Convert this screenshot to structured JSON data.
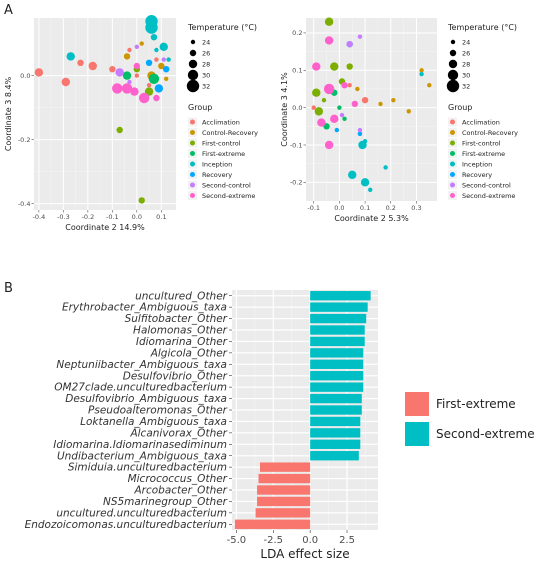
{
  "panels": {
    "a": "A",
    "b": "B"
  },
  "chart_data": [
    {
      "type": "scatter",
      "xlabel": "Coordinate 2 14.9%",
      "ylabel": "Coordinate 3 8.4%",
      "xlim": [
        -0.42,
        0.16
      ],
      "ylim": [
        -0.42,
        0.18
      ],
      "xticks": [
        -0.4,
        -0.3,
        -0.2,
        -0.1,
        0.0,
        0.1
      ],
      "xtick_labels": [
        "-0.4",
        "-0.3",
        "-0.2",
        "-0.1",
        "0.0",
        "0.1"
      ],
      "yticks": [
        -0.4,
        -0.2,
        0.0
      ],
      "ytick_labels": [
        "-0.4",
        "-0.2",
        "0.0"
      ],
      "grid": true,
      "points": [
        {
          "x": -0.4,
          "y": 0.01,
          "group": "Acclimation",
          "temp": 28
        },
        {
          "x": -0.29,
          "y": -0.02,
          "group": "Acclimation",
          "temp": 28
        },
        {
          "x": -0.23,
          "y": 0.04,
          "group": "Acclimation",
          "temp": 26
        },
        {
          "x": -0.18,
          "y": 0.03,
          "group": "Acclimation",
          "temp": 28
        },
        {
          "x": -0.1,
          "y": 0.02,
          "group": "Acclimation",
          "temp": 26
        },
        {
          "x": -0.03,
          "y": 0.08,
          "group": "Acclimation",
          "temp": 24
        },
        {
          "x": 0.0,
          "y": 0.0,
          "group": "Acclimation",
          "temp": 24
        },
        {
          "x": 0.05,
          "y": -0.03,
          "group": "Acclimation",
          "temp": 24
        },
        {
          "x": 0.08,
          "y": 0.05,
          "group": "Acclimation",
          "temp": 24
        },
        {
          "x": -0.04,
          "y": 0.06,
          "group": "Control-Recovery",
          "temp": 26
        },
        {
          "x": 0.02,
          "y": 0.1,
          "group": "Control-Recovery",
          "temp": 24
        },
        {
          "x": 0.06,
          "y": 0.0,
          "group": "Control-Recovery",
          "temp": 28
        },
        {
          "x": 0.1,
          "y": 0.03,
          "group": "Control-Recovery",
          "temp": 26
        },
        {
          "x": 0.12,
          "y": -0.01,
          "group": "Control-Recovery",
          "temp": 24
        },
        {
          "x": -0.07,
          "y": -0.17,
          "group": "First-control",
          "temp": 26
        },
        {
          "x": 0.02,
          "y": -0.39,
          "group": "First-control",
          "temp": 26
        },
        {
          "x": 0.0,
          "y": 0.02,
          "group": "First-control",
          "temp": 26
        },
        {
          "x": 0.05,
          "y": -0.05,
          "group": "First-control",
          "temp": 28
        },
        {
          "x": -0.04,
          "y": 0.0,
          "group": "First-extreme",
          "temp": 28
        },
        {
          "x": 0.07,
          "y": -0.01,
          "group": "First-extreme",
          "temp": 30
        },
        {
          "x": -0.27,
          "y": 0.06,
          "group": "Inception",
          "temp": 28
        },
        {
          "x": 0.06,
          "y": 0.17,
          "group": "Inception",
          "temp": 32
        },
        {
          "x": 0.06,
          "y": 0.15,
          "group": "Inception",
          "temp": 32
        },
        {
          "x": 0.07,
          "y": 0.12,
          "group": "Inception",
          "temp": 26
        },
        {
          "x": 0.08,
          "y": 0.08,
          "group": "Inception",
          "temp": 24
        },
        {
          "x": 0.11,
          "y": 0.09,
          "group": "Inception",
          "temp": 28
        },
        {
          "x": 0.13,
          "y": 0.05,
          "group": "Inception",
          "temp": 24
        },
        {
          "x": 0.05,
          "y": 0.04,
          "group": "Recovery",
          "temp": 26
        },
        {
          "x": 0.09,
          "y": -0.04,
          "group": "Recovery",
          "temp": 28
        },
        {
          "x": 0.12,
          "y": 0.02,
          "group": "Recovery",
          "temp": 26
        },
        {
          "x": 0.0,
          "y": 0.09,
          "group": "Second-control",
          "temp": 24
        },
        {
          "x": -0.07,
          "y": 0.01,
          "group": "Second-control",
          "temp": 28
        },
        {
          "x": -0.03,
          "y": -0.02,
          "group": "Second-control",
          "temp": 24
        },
        {
          "x": 0.11,
          "y": 0.05,
          "group": "Second-control",
          "temp": 24
        },
        {
          "x": -0.08,
          "y": -0.04,
          "group": "Second-extreme",
          "temp": 30
        },
        {
          "x": -0.04,
          "y": -0.04,
          "group": "Second-extreme",
          "temp": 30
        },
        {
          "x": -0.01,
          "y": -0.05,
          "group": "Second-extreme",
          "temp": 28
        },
        {
          "x": 0.03,
          "y": -0.07,
          "group": "Second-extreme",
          "temp": 30
        },
        {
          "x": 0.08,
          "y": -0.07,
          "group": "Second-extreme",
          "temp": 26
        },
        {
          "x": 0.0,
          "y": 0.03,
          "group": "Second-extreme",
          "temp": 26
        }
      ]
    },
    {
      "type": "scatter",
      "xlabel": "Coordinate 2 5.3%",
      "ylabel": "Coordinate 3 4.1%",
      "xlim": [
        -0.13,
        0.38
      ],
      "ylim": [
        -0.25,
        0.24
      ],
      "xticks": [
        -0.1,
        0.0,
        0.1,
        0.2,
        0.3
      ],
      "xtick_labels": [
        "-0.1",
        "0.0",
        "0.1",
        "0.2",
        "0.3"
      ],
      "yticks": [
        -0.2,
        -0.1,
        0.0,
        0.1,
        0.2
      ],
      "ytick_labels": [
        "-0.2",
        "-0.1",
        "0.0",
        "0.1",
        "0.2"
      ],
      "grid": true,
      "points": [
        {
          "x": -0.1,
          "y": 0.0,
          "group": "Acclimation",
          "temp": 24
        },
        {
          "x": 0.04,
          "y": 0.06,
          "group": "Acclimation",
          "temp": 24
        },
        {
          "x": 0.1,
          "y": 0.02,
          "group": "Acclimation",
          "temp": 26
        },
        {
          "x": 0.07,
          "y": 0.05,
          "group": "Control-Recovery",
          "temp": 24
        },
        {
          "x": 0.16,
          "y": 0.01,
          "group": "Control-Recovery",
          "temp": 24
        },
        {
          "x": 0.21,
          "y": 0.02,
          "group": "Control-Recovery",
          "temp": 24
        },
        {
          "x": 0.27,
          "y": -0.01,
          "group": "Control-Recovery",
          "temp": 24
        },
        {
          "x": 0.32,
          "y": 0.1,
          "group": "Control-Recovery",
          "temp": 24
        },
        {
          "x": 0.35,
          "y": 0.06,
          "group": "Control-Recovery",
          "temp": 24
        },
        {
          "x": -0.04,
          "y": 0.23,
          "group": "First-control",
          "temp": 28
        },
        {
          "x": -0.02,
          "y": 0.11,
          "group": "First-control",
          "temp": 28
        },
        {
          "x": 0.01,
          "y": 0.07,
          "group": "First-control",
          "temp": 26
        },
        {
          "x": 0.04,
          "y": 0.11,
          "group": "First-control",
          "temp": 26
        },
        {
          "x": -0.09,
          "y": 0.04,
          "group": "First-control",
          "temp": 28
        },
        {
          "x": -0.08,
          "y": -0.01,
          "group": "First-control",
          "temp": 28
        },
        {
          "x": -0.06,
          "y": 0.02,
          "group": "First-control",
          "temp": 24
        },
        {
          "x": -0.05,
          "y": -0.05,
          "group": "First-extreme",
          "temp": 26
        },
        {
          "x": -0.02,
          "y": 0.04,
          "group": "First-extreme",
          "temp": 26
        },
        {
          "x": 0.0,
          "y": 0.0,
          "group": "First-extreme",
          "temp": 24
        },
        {
          "x": 0.02,
          "y": -0.03,
          "group": "First-extreme",
          "temp": 24
        },
        {
          "x": 0.08,
          "y": -0.07,
          "group": "Inception",
          "temp": 24
        },
        {
          "x": 0.1,
          "y": -0.09,
          "group": "Inception",
          "temp": 24
        },
        {
          "x": 0.09,
          "y": -0.1,
          "group": "Inception",
          "temp": 28
        },
        {
          "x": 0.05,
          "y": -0.18,
          "group": "Inception",
          "temp": 28
        },
        {
          "x": 0.1,
          "y": -0.2,
          "group": "Inception",
          "temp": 28
        },
        {
          "x": 0.18,
          "y": -0.16,
          "group": "Inception",
          "temp": 24
        },
        {
          "x": 0.12,
          "y": -0.22,
          "group": "Inception",
          "temp": 24
        },
        {
          "x": 0.32,
          "y": 0.09,
          "group": "Inception",
          "temp": 24
        },
        {
          "x": 0.04,
          "y": 0.17,
          "group": "Recovery",
          "temp": 26
        },
        {
          "x": -0.01,
          "y": -0.06,
          "group": "Recovery",
          "temp": 24
        },
        {
          "x": 0.08,
          "y": -0.07,
          "group": "Recovery",
          "temp": 24
        },
        {
          "x": 0.08,
          "y": 0.19,
          "group": "Second-control",
          "temp": 24
        },
        {
          "x": 0.04,
          "y": 0.17,
          "group": "Second-control",
          "temp": 26
        },
        {
          "x": -0.04,
          "y": -0.1,
          "group": "Second-control",
          "temp": 24
        },
        {
          "x": 0.08,
          "y": -0.06,
          "group": "Second-control",
          "temp": 24
        },
        {
          "x": 0.01,
          "y": -0.02,
          "group": "Second-control",
          "temp": 24
        },
        {
          "x": -0.04,
          "y": 0.18,
          "group": "Second-extreme",
          "temp": 28
        },
        {
          "x": -0.09,
          "y": 0.11,
          "group": "Second-extreme",
          "temp": 28
        },
        {
          "x": -0.04,
          "y": 0.05,
          "group": "Second-extreme",
          "temp": 30
        },
        {
          "x": -0.07,
          "y": -0.04,
          "group": "Second-extreme",
          "temp": 28
        },
        {
          "x": -0.02,
          "y": -0.03,
          "group": "Second-extreme",
          "temp": 28
        },
        {
          "x": 0.02,
          "y": 0.06,
          "group": "Second-extreme",
          "temp": 26
        },
        {
          "x": 0.06,
          "y": 0.01,
          "group": "Second-extreme",
          "temp": 26
        },
        {
          "x": -0.04,
          "y": -0.1,
          "group": "Second-extreme",
          "temp": 28
        }
      ]
    },
    {
      "type": "bar",
      "orientation": "horizontal",
      "xlabel": "LDA effect size",
      "xlim": [
        -5.3,
        4.6
      ],
      "xticks": [
        -5.0,
        -2.5,
        0.0,
        2.5
      ],
      "xtick_labels": [
        "-5.0",
        "-2.5",
        "0.0",
        "2.5"
      ],
      "grid": true,
      "legend_position": "right",
      "categories": [
        "uncultured_Other",
        "Erythrobacter_Ambiguous_taxa",
        "Sulfitobacter_Other",
        "Halomonas_Other",
        "Idiomarina_Other",
        "Algicola_Other",
        "Neptuniibacter_Ambiguous_taxa",
        "Desulfovibrio_Other",
        "OM27clade.unculturedbacterium",
        "Desulfovibrio_Ambiguous_taxa",
        "Pseudoalteromonas_Other",
        "Loktanella_Ambiguous_taxa",
        "Alcanivorax_Other",
        "Idiomarina.Idiomarinasediminum",
        "Undibacterium_Ambiguous_taxa",
        "Simiduia.unculturedbacterium",
        "Micrococcus_Other",
        "Arcobacter_Other",
        "NS5marinegroup_Other",
        "uncultured.unculturedbacterium",
        "Endozoicomonas.unculturedbacterium"
      ],
      "values": [
        4.1,
        3.9,
        3.8,
        3.7,
        3.7,
        3.6,
        3.6,
        3.6,
        3.6,
        3.5,
        3.5,
        3.4,
        3.4,
        3.4,
        3.3,
        -3.4,
        -3.5,
        -3.6,
        -3.6,
        -3.7,
        -5.1
      ],
      "groups": [
        "Second-extreme",
        "Second-extreme",
        "Second-extreme",
        "Second-extreme",
        "Second-extreme",
        "Second-extreme",
        "Second-extreme",
        "Second-extreme",
        "Second-extreme",
        "Second-extreme",
        "Second-extreme",
        "Second-extreme",
        "Second-extreme",
        "Second-extreme",
        "Second-extreme",
        "First-extreme",
        "First-extreme",
        "First-extreme",
        "First-extreme",
        "First-extreme",
        "First-extreme"
      ],
      "legend": [
        {
          "name": "First-extreme",
          "color": "#F8766D"
        },
        {
          "name": "Second-extreme",
          "color": "#00BFC4"
        }
      ]
    }
  ],
  "legend_a": {
    "temp_title": "Temperature (°C)",
    "temp_values": [
      24,
      26,
      28,
      30,
      32
    ],
    "temp_labels": [
      "24",
      "26",
      "28",
      "30",
      "32"
    ],
    "group_title": "Group",
    "groups": [
      {
        "name": "Acclimation",
        "color": "#F8766D"
      },
      {
        "name": "Control-Recovery",
        "color": "#CD9600"
      },
      {
        "name": "First-control",
        "color": "#7CAE00"
      },
      {
        "name": "First-extreme",
        "color": "#00BE67"
      },
      {
        "name": "Inception",
        "color": "#00BFC4"
      },
      {
        "name": "Recovery",
        "color": "#00A9FF"
      },
      {
        "name": "Second-control",
        "color": "#C77CFF"
      },
      {
        "name": "Second-extreme",
        "color": "#FF61CC"
      }
    ]
  }
}
